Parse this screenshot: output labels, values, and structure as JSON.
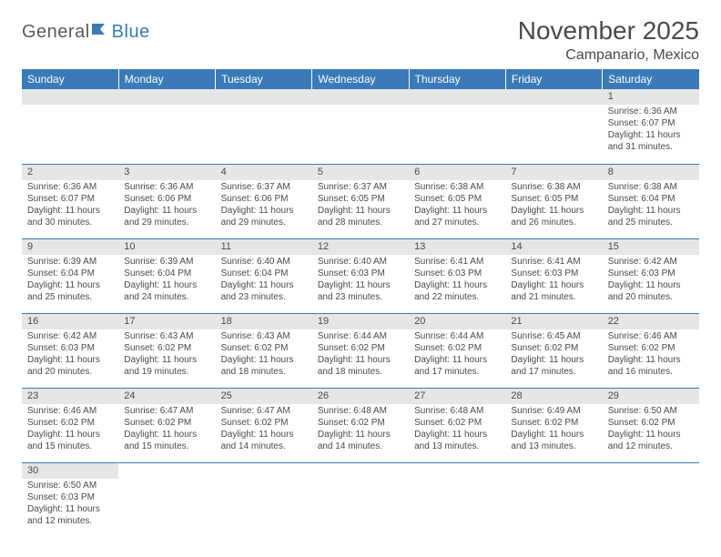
{
  "logo": {
    "text1": "General",
    "text2": "Blue"
  },
  "title": "November 2025",
  "location": "Campanario, Mexico",
  "colors": {
    "header_bg": "#3a7ab8",
    "header_text": "#ffffff",
    "daynum_bg": "#e6e6e6",
    "text": "#4a4a4a",
    "rule": "#3a7ab8"
  },
  "day_headers": [
    "Sunday",
    "Monday",
    "Tuesday",
    "Wednesday",
    "Thursday",
    "Friday",
    "Saturday"
  ],
  "weeks": [
    [
      {
        "n": "",
        "sr": "",
        "ss": "",
        "dl": ""
      },
      {
        "n": "",
        "sr": "",
        "ss": "",
        "dl": ""
      },
      {
        "n": "",
        "sr": "",
        "ss": "",
        "dl": ""
      },
      {
        "n": "",
        "sr": "",
        "ss": "",
        "dl": ""
      },
      {
        "n": "",
        "sr": "",
        "ss": "",
        "dl": ""
      },
      {
        "n": "",
        "sr": "",
        "ss": "",
        "dl": ""
      },
      {
        "n": "1",
        "sr": "Sunrise: 6:36 AM",
        "ss": "Sunset: 6:07 PM",
        "dl": "Daylight: 11 hours and 31 minutes."
      }
    ],
    [
      {
        "n": "2",
        "sr": "Sunrise: 6:36 AM",
        "ss": "Sunset: 6:07 PM",
        "dl": "Daylight: 11 hours and 30 minutes."
      },
      {
        "n": "3",
        "sr": "Sunrise: 6:36 AM",
        "ss": "Sunset: 6:06 PM",
        "dl": "Daylight: 11 hours and 29 minutes."
      },
      {
        "n": "4",
        "sr": "Sunrise: 6:37 AM",
        "ss": "Sunset: 6:06 PM",
        "dl": "Daylight: 11 hours and 29 minutes."
      },
      {
        "n": "5",
        "sr": "Sunrise: 6:37 AM",
        "ss": "Sunset: 6:05 PM",
        "dl": "Daylight: 11 hours and 28 minutes."
      },
      {
        "n": "6",
        "sr": "Sunrise: 6:38 AM",
        "ss": "Sunset: 6:05 PM",
        "dl": "Daylight: 11 hours and 27 minutes."
      },
      {
        "n": "7",
        "sr": "Sunrise: 6:38 AM",
        "ss": "Sunset: 6:05 PM",
        "dl": "Daylight: 11 hours and 26 minutes."
      },
      {
        "n": "8",
        "sr": "Sunrise: 6:38 AM",
        "ss": "Sunset: 6:04 PM",
        "dl": "Daylight: 11 hours and 25 minutes."
      }
    ],
    [
      {
        "n": "9",
        "sr": "Sunrise: 6:39 AM",
        "ss": "Sunset: 6:04 PM",
        "dl": "Daylight: 11 hours and 25 minutes."
      },
      {
        "n": "10",
        "sr": "Sunrise: 6:39 AM",
        "ss": "Sunset: 6:04 PM",
        "dl": "Daylight: 11 hours and 24 minutes."
      },
      {
        "n": "11",
        "sr": "Sunrise: 6:40 AM",
        "ss": "Sunset: 6:04 PM",
        "dl": "Daylight: 11 hours and 23 minutes."
      },
      {
        "n": "12",
        "sr": "Sunrise: 6:40 AM",
        "ss": "Sunset: 6:03 PM",
        "dl": "Daylight: 11 hours and 23 minutes."
      },
      {
        "n": "13",
        "sr": "Sunrise: 6:41 AM",
        "ss": "Sunset: 6:03 PM",
        "dl": "Daylight: 11 hours and 22 minutes."
      },
      {
        "n": "14",
        "sr": "Sunrise: 6:41 AM",
        "ss": "Sunset: 6:03 PM",
        "dl": "Daylight: 11 hours and 21 minutes."
      },
      {
        "n": "15",
        "sr": "Sunrise: 6:42 AM",
        "ss": "Sunset: 6:03 PM",
        "dl": "Daylight: 11 hours and 20 minutes."
      }
    ],
    [
      {
        "n": "16",
        "sr": "Sunrise: 6:42 AM",
        "ss": "Sunset: 6:03 PM",
        "dl": "Daylight: 11 hours and 20 minutes."
      },
      {
        "n": "17",
        "sr": "Sunrise: 6:43 AM",
        "ss": "Sunset: 6:02 PM",
        "dl": "Daylight: 11 hours and 19 minutes."
      },
      {
        "n": "18",
        "sr": "Sunrise: 6:43 AM",
        "ss": "Sunset: 6:02 PM",
        "dl": "Daylight: 11 hours and 18 minutes."
      },
      {
        "n": "19",
        "sr": "Sunrise: 6:44 AM",
        "ss": "Sunset: 6:02 PM",
        "dl": "Daylight: 11 hours and 18 minutes."
      },
      {
        "n": "20",
        "sr": "Sunrise: 6:44 AM",
        "ss": "Sunset: 6:02 PM",
        "dl": "Daylight: 11 hours and 17 minutes."
      },
      {
        "n": "21",
        "sr": "Sunrise: 6:45 AM",
        "ss": "Sunset: 6:02 PM",
        "dl": "Daylight: 11 hours and 17 minutes."
      },
      {
        "n": "22",
        "sr": "Sunrise: 6:46 AM",
        "ss": "Sunset: 6:02 PM",
        "dl": "Daylight: 11 hours and 16 minutes."
      }
    ],
    [
      {
        "n": "23",
        "sr": "Sunrise: 6:46 AM",
        "ss": "Sunset: 6:02 PM",
        "dl": "Daylight: 11 hours and 15 minutes."
      },
      {
        "n": "24",
        "sr": "Sunrise: 6:47 AM",
        "ss": "Sunset: 6:02 PM",
        "dl": "Daylight: 11 hours and 15 minutes."
      },
      {
        "n": "25",
        "sr": "Sunrise: 6:47 AM",
        "ss": "Sunset: 6:02 PM",
        "dl": "Daylight: 11 hours and 14 minutes."
      },
      {
        "n": "26",
        "sr": "Sunrise: 6:48 AM",
        "ss": "Sunset: 6:02 PM",
        "dl": "Daylight: 11 hours and 14 minutes."
      },
      {
        "n": "27",
        "sr": "Sunrise: 6:48 AM",
        "ss": "Sunset: 6:02 PM",
        "dl": "Daylight: 11 hours and 13 minutes."
      },
      {
        "n": "28",
        "sr": "Sunrise: 6:49 AM",
        "ss": "Sunset: 6:02 PM",
        "dl": "Daylight: 11 hours and 13 minutes."
      },
      {
        "n": "29",
        "sr": "Sunrise: 6:50 AM",
        "ss": "Sunset: 6:02 PM",
        "dl": "Daylight: 11 hours and 12 minutes."
      }
    ],
    [
      {
        "n": "30",
        "sr": "Sunrise: 6:50 AM",
        "ss": "Sunset: 6:03 PM",
        "dl": "Daylight: 11 hours and 12 minutes."
      },
      {
        "n": "",
        "sr": "",
        "ss": "",
        "dl": ""
      },
      {
        "n": "",
        "sr": "",
        "ss": "",
        "dl": ""
      },
      {
        "n": "",
        "sr": "",
        "ss": "",
        "dl": ""
      },
      {
        "n": "",
        "sr": "",
        "ss": "",
        "dl": ""
      },
      {
        "n": "",
        "sr": "",
        "ss": "",
        "dl": ""
      },
      {
        "n": "",
        "sr": "",
        "ss": "",
        "dl": ""
      }
    ]
  ]
}
